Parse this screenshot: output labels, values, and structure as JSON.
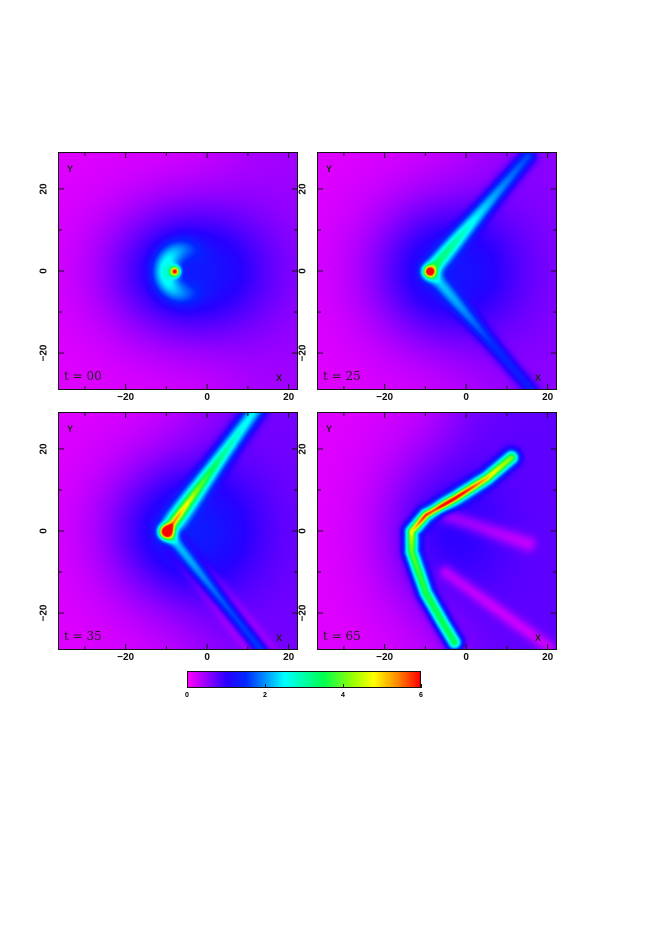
{
  "chart_data": {
    "type": "heatmap",
    "xlabel": "X",
    "ylabel": "Y",
    "xlim": [
      -36.6,
      22.3
    ],
    "ylim": [
      -29,
      29
    ],
    "xticks": [
      -20,
      0,
      20
    ],
    "yticks": [
      -20,
      0,
      20
    ],
    "xtick_labels": [
      "−20",
      "0",
      "20"
    ],
    "ytick_labels": [
      "−20",
      "0",
      "20"
    ],
    "panels": [
      {
        "label": "t = 00"
      },
      {
        "label": "t = 25"
      },
      {
        "label": "t = 35"
      },
      {
        "label": "t = 65"
      }
    ],
    "colorbar": {
      "range": [
        0,
        6
      ],
      "ticks": [
        "0",
        "2",
        "4",
        "6"
      ],
      "colormap": [
        "#ff00ff",
        "#0000ff",
        "#00ffff",
        "#00ff50",
        "#ffff00",
        "#ff8c00",
        "#ff0000"
      ]
    }
  }
}
